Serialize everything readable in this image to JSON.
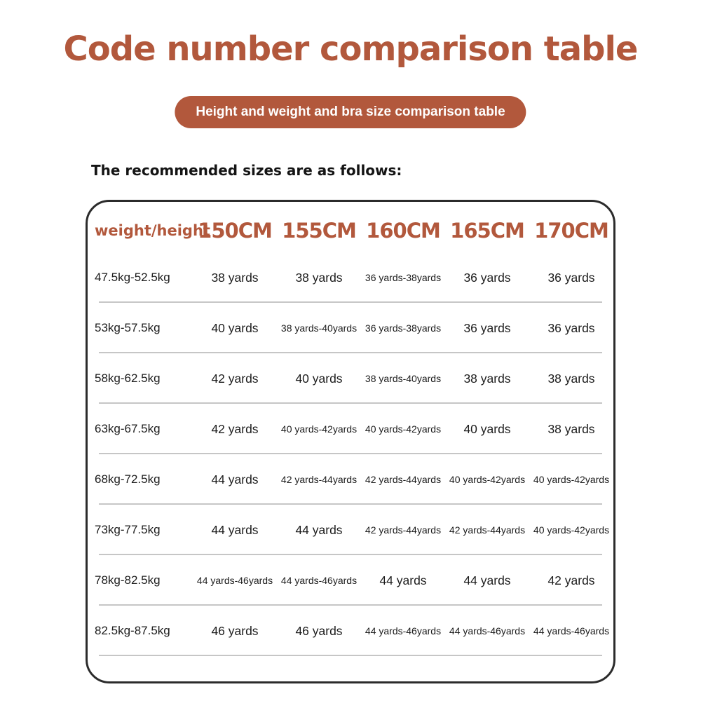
{
  "page": {
    "title": "Code number comparison table",
    "badge": "Height and weight and bra size comparison table",
    "intro": "The recommended sizes are as follows:"
  },
  "colors": {
    "accent_terracotta": "#b2583c",
    "badge_text": "#ffffff",
    "body_text": "#1c1c1c",
    "divider": "#c6c6c6",
    "table_border": "#2b2b2b",
    "background": "#ffffff"
  },
  "chart_data": {
    "type": "table",
    "title": "Code number comparison table",
    "subtitle": "Height and weight and bra size comparison table",
    "note": "The recommended sizes are as follows:",
    "columns": [
      "weight/height",
      "150CM",
      "155CM",
      "160CM",
      "165CM",
      "170CM"
    ],
    "rows": [
      [
        "47.5kg-52.5kg",
        "38 yards",
        "38 yards",
        "36 yards-38yards",
        "36 yards",
        "36 yards"
      ],
      [
        "53kg-57.5kg",
        "40 yards",
        "38 yards-40yards",
        "36 yards-38yards",
        "36 yards",
        "36 yards"
      ],
      [
        "58kg-62.5kg",
        "42 yards",
        "40 yards",
        "38 yards-40yards",
        "38 yards",
        "38 yards"
      ],
      [
        "63kg-67.5kg",
        "42 yards",
        "40 yards-42yards",
        "40 yards-42yards",
        "40 yards",
        "38 yards"
      ],
      [
        "68kg-72.5kg",
        "44 yards",
        "42 yards-44yards",
        "42 yards-44yards",
        "40 yards-42yards",
        "40 yards-42yards"
      ],
      [
        "73kg-77.5kg",
        "44 yards",
        "44 yards",
        "42 yards-44yards",
        "42 yards-44yards",
        "40 yards-42yards"
      ],
      [
        "78kg-82.5kg",
        "44 yards-46yards",
        "44 yards-46yards",
        "44 yards",
        "44 yards",
        "42 yards"
      ],
      [
        "82.5kg-87.5kg",
        "46 yards",
        "46 yards",
        "44 yards-46yards",
        "44 yards-46yards",
        "44 yards-46yards"
      ]
    ]
  }
}
